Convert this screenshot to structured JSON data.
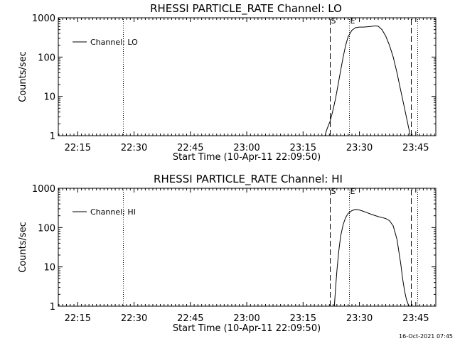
{
  "chart_data": [
    {
      "type": "line",
      "title": "RHESSI PARTICLE_RATE Channel: LO",
      "xlabel": "Start Time (10-Apr-11 22:09:50)",
      "ylabel": "Counts/sec",
      "y_scale": "log",
      "ylim": [
        1,
        1000
      ],
      "xlim": [
        "22:09:50",
        "23:50:20"
      ],
      "x_ticks": [
        "22:15",
        "22:30",
        "22:45",
        "23:00",
        "23:15",
        "23:30",
        "23:45"
      ],
      "y_ticks": [
        "1",
        "10",
        "100",
        "1000"
      ],
      "legend": {
        "position": "top-left",
        "entries": [
          "Channel: LO"
        ]
      },
      "markers": [
        {
          "label": "",
          "time": "22:27:00",
          "style": "dotted"
        },
        {
          "label": "S",
          "time": "23:22:10",
          "style": "dashed"
        },
        {
          "label": "E",
          "time": "23:27:20",
          "style": "dotted"
        },
        {
          "label": "",
          "time": "23:43:40",
          "style": "dashed"
        },
        {
          "label": "",
          "time": "23:45:20",
          "style": "dotted"
        }
      ],
      "series": [
        {
          "name": "Channel: LO",
          "x": [
            "23:20:50",
            "23:21:10",
            "23:21:30",
            "23:21:50",
            "23:22:10",
            "23:22:30",
            "23:22:50",
            "23:23:10",
            "23:23:40",
            "23:24:20",
            "23:25:00",
            "23:25:40",
            "23:26:20",
            "23:27:00",
            "23:28:00",
            "23:29:00",
            "23:30:00",
            "23:31:00",
            "23:32:00",
            "23:33:00",
            "23:34:00",
            "23:35:00",
            "23:36:00",
            "23:37:00",
            "23:38:00",
            "23:39:00",
            "23:40:00",
            "23:41:00",
            "23:42:00",
            "23:42:40",
            "23:43:10",
            "23:43:30"
          ],
          "y": [
            1,
            1.3,
            1.6,
            1.9,
            2.3,
            3,
            4,
            5.5,
            9,
            20,
            45,
            100,
            200,
            330,
            480,
            560,
            580,
            580,
            590,
            600,
            620,
            610,
            500,
            340,
            200,
            100,
            40,
            14,
            5,
            2.5,
            1.5,
            1
          ]
        }
      ]
    },
    {
      "type": "line",
      "title": "RHESSI PARTICLE_RATE Channel: HI",
      "xlabel": "Start Time (10-Apr-11 22:09:50)",
      "ylabel": "Counts/sec",
      "y_scale": "log",
      "ylim": [
        1,
        1000
      ],
      "xlim": [
        "22:09:50",
        "23:50:20"
      ],
      "x_ticks": [
        "22:15",
        "22:30",
        "22:45",
        "23:00",
        "23:15",
        "23:30",
        "23:45"
      ],
      "y_ticks": [
        "1",
        "10",
        "100",
        "1000"
      ],
      "legend": {
        "position": "top-left",
        "entries": [
          "Channel: HI"
        ]
      },
      "markers": [
        {
          "label": "",
          "time": "22:27:00",
          "style": "dotted"
        },
        {
          "label": "S",
          "time": "23:22:10",
          "style": "dashed"
        },
        {
          "label": "E",
          "time": "23:27:20",
          "style": "dotted"
        },
        {
          "label": "",
          "time": "23:43:40",
          "style": "dashed"
        },
        {
          "label": "",
          "time": "23:45:20",
          "style": "dotted"
        }
      ],
      "series": [
        {
          "name": "Channel: HI",
          "x": [
            "23:23:20",
            "23:23:40",
            "23:24:00",
            "23:24:30",
            "23:25:00",
            "23:25:40",
            "23:26:20",
            "23:27:00",
            "23:28:00",
            "23:29:00",
            "23:30:00",
            "23:31:00",
            "23:32:00",
            "23:33:00",
            "23:34:00",
            "23:35:00",
            "23:36:00",
            "23:37:00",
            "23:38:00",
            "23:39:00",
            "23:40:00",
            "23:41:00",
            "23:41:30",
            "23:42:00",
            "23:42:30",
            "23:43:00",
            "23:43:20"
          ],
          "y": [
            1,
            3,
            8,
            25,
            60,
            120,
            180,
            230,
            270,
            290,
            280,
            260,
            240,
            220,
            205,
            190,
            180,
            170,
            150,
            110,
            50,
            12,
            5,
            2.5,
            1.5,
            1.1,
            1
          ]
        }
      ]
    }
  ],
  "footer": {
    "timestamp": "16-Oct-2021 07:45"
  }
}
